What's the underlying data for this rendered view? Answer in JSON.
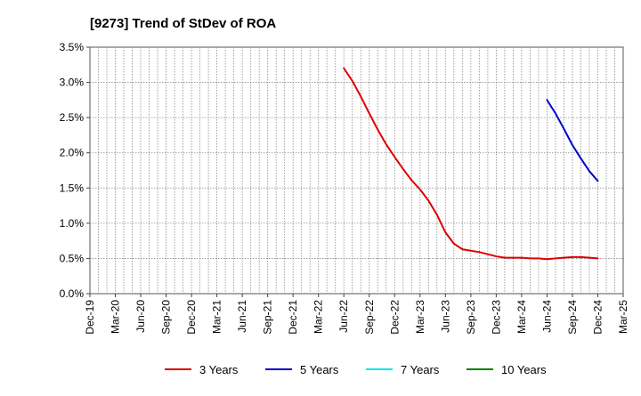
{
  "chart_data": {
    "type": "line",
    "title": "[9273]  Trend of StDev of ROA",
    "xlabel": "",
    "ylabel": "",
    "ylim": [
      0,
      3.5
    ],
    "yticks": [
      "0.0%",
      "0.5%",
      "1.0%",
      "1.5%",
      "2.0%",
      "2.5%",
      "3.0%",
      "3.5%"
    ],
    "xticks": [
      "Dec-19",
      "Mar-20",
      "Jun-20",
      "Sep-20",
      "Dec-20",
      "Mar-21",
      "Jun-21",
      "Sep-21",
      "Dec-21",
      "Mar-22",
      "Jun-22",
      "Sep-22",
      "Dec-22",
      "Mar-23",
      "Jun-23",
      "Sep-23",
      "Dec-23",
      "Mar-24",
      "Jun-24",
      "Sep-24",
      "Dec-24",
      "Mar-25"
    ],
    "grid": true,
    "legend_position": "bottom",
    "series": [
      {
        "name": "3 Years",
        "color": "#dd0000",
        "points": [
          [
            "Jun-22",
            3.2
          ],
          [
            "Jul-22",
            3.02
          ],
          [
            "Aug-22",
            2.8
          ],
          [
            "Sep-22",
            2.56
          ],
          [
            "Oct-22",
            2.33
          ],
          [
            "Nov-22",
            2.12
          ],
          [
            "Dec-22",
            1.94
          ],
          [
            "Jan-23",
            1.77
          ],
          [
            "Feb-23",
            1.61
          ],
          [
            "Mar-23",
            1.48
          ],
          [
            "Apr-23",
            1.32
          ],
          [
            "May-23",
            1.12
          ],
          [
            "Jun-23",
            0.87
          ],
          [
            "Jul-23",
            0.71
          ],
          [
            "Aug-23",
            0.63
          ],
          [
            "Sep-23",
            0.61
          ],
          [
            "Oct-23",
            0.59
          ],
          [
            "Nov-23",
            0.56
          ],
          [
            "Dec-23",
            0.53
          ],
          [
            "Jan-24",
            0.51
          ],
          [
            "Feb-24",
            0.51
          ],
          [
            "Mar-24",
            0.51
          ],
          [
            "Apr-24",
            0.5
          ],
          [
            "May-24",
            0.5
          ],
          [
            "Jun-24",
            0.49
          ],
          [
            "Jul-24",
            0.5
          ],
          [
            "Aug-24",
            0.51
          ],
          [
            "Sep-24",
            0.52
          ],
          [
            "Oct-24",
            0.52
          ],
          [
            "Nov-24",
            0.51
          ],
          [
            "Dec-24",
            0.5
          ]
        ]
      },
      {
        "name": "5 Years",
        "color": "#0000cc",
        "points": [
          [
            "Jun-24",
            2.75
          ],
          [
            "Jul-24",
            2.56
          ],
          [
            "Aug-24",
            2.34
          ],
          [
            "Sep-24",
            2.11
          ],
          [
            "Oct-24",
            1.92
          ],
          [
            "Nov-24",
            1.74
          ],
          [
            "Dec-24",
            1.6
          ]
        ]
      },
      {
        "name": "7 Years",
        "color": "#00e5ee",
        "points": []
      },
      {
        "name": "10 Years",
        "color": "#008000",
        "points": []
      }
    ]
  }
}
